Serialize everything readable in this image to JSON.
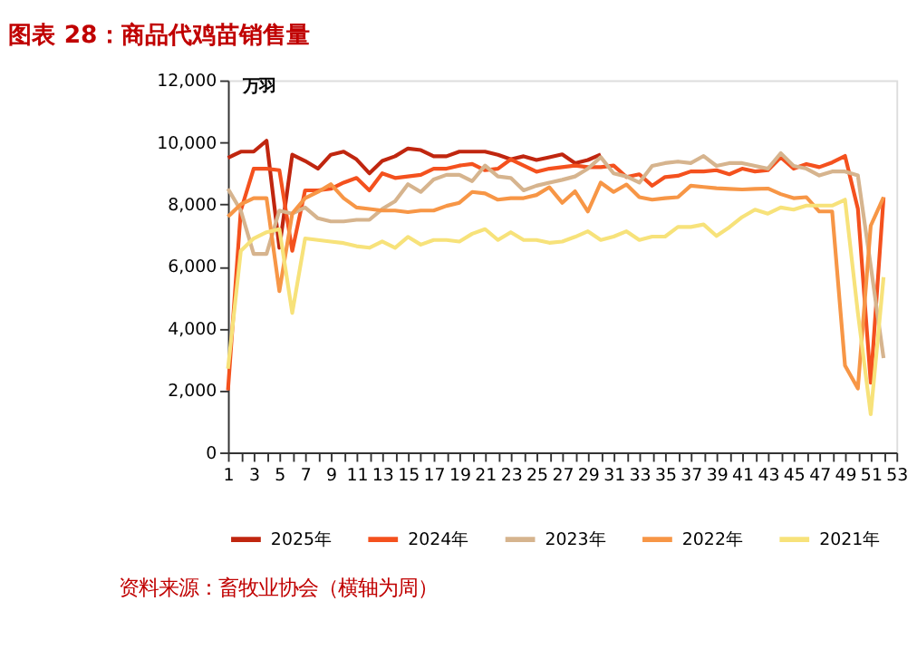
{
  "chart_data": {
    "type": "line",
    "title": "图表 28：商品代鸡苗销售量",
    "ylabel": "万羽",
    "x": [
      1,
      2,
      3,
      4,
      5,
      6,
      7,
      8,
      9,
      10,
      11,
      12,
      13,
      14,
      15,
      16,
      17,
      18,
      19,
      20,
      21,
      22,
      23,
      24,
      25,
      26,
      27,
      28,
      29,
      30,
      31,
      32,
      33,
      34,
      35,
      36,
      37,
      38,
      39,
      40,
      41,
      42,
      43,
      44,
      45,
      46,
      47,
      48,
      49,
      50,
      51,
      52
    ],
    "series": [
      {
        "name": "2025年",
        "color": "#c0260f",
        "values": [
          9500,
          9700,
          9700,
          10050,
          6600,
          9600,
          9400,
          9150,
          9600,
          9700,
          9450,
          9000,
          9400,
          9550,
          9800,
          9750,
          9550,
          9550,
          9700,
          9700,
          9700,
          9600,
          9450,
          9550,
          9430,
          9520,
          9610,
          9330,
          9430,
          9610,
          null,
          null,
          null,
          null,
          null,
          null,
          null,
          null,
          null,
          null,
          null,
          null,
          null,
          null,
          null,
          null,
          null,
          null,
          null,
          null,
          null,
          null
        ]
      },
      {
        "name": "2024年",
        "color": "#f4511e",
        "values": [
          2000,
          7800,
          9150,
          9150,
          9100,
          6500,
          8450,
          8450,
          8500,
          8700,
          8850,
          8450,
          9000,
          8850,
          8900,
          8950,
          9150,
          9150,
          9250,
          9300,
          9100,
          9150,
          9450,
          9250,
          9050,
          9150,
          9200,
          9250,
          9200,
          9200,
          9250,
          8880,
          8970,
          8600,
          8880,
          8920,
          9060,
          9060,
          9100,
          8970,
          9150,
          9060,
          9100,
          9520,
          9150,
          9300,
          9200,
          9350,
          9560,
          7860,
          2250,
          8230
        ]
      },
      {
        "name": "2023年",
        "color": "#d6b48e",
        "values": [
          8500,
          7800,
          6400,
          6400,
          7800,
          7700,
          7900,
          7550,
          7450,
          7450,
          7500,
          7500,
          7850,
          8100,
          8650,
          8400,
          8800,
          8950,
          8950,
          8750,
          9250,
          8900,
          8850,
          8450,
          8600,
          8700,
          8790,
          8900,
          9150,
          9520,
          9000,
          8900,
          8700,
          9240,
          9330,
          9380,
          9330,
          9560,
          9240,
          9330,
          9330,
          9240,
          9150,
          9650,
          9240,
          9150,
          8930,
          9060,
          9060,
          8930,
          6020,
          3040
        ]
      },
      {
        "name": "2022年",
        "color": "#f79646",
        "values": [
          7600,
          8000,
          8200,
          8200,
          5200,
          7700,
          8200,
          8400,
          8650,
          8200,
          7900,
          7850,
          7800,
          7800,
          7750,
          7800,
          7800,
          7950,
          8050,
          8400,
          8350,
          8150,
          8200,
          8200,
          8300,
          8550,
          8050,
          8420,
          7770,
          8700,
          8400,
          8640,
          8230,
          8150,
          8200,
          8230,
          8600,
          8560,
          8520,
          8500,
          8480,
          8500,
          8510,
          8330,
          8200,
          8230,
          7770,
          7770,
          2800,
          2060,
          7310,
          8230
        ]
      },
      {
        "name": "2021年",
        "color": "#f7e27a",
        "values": [
          2700,
          6500,
          6900,
          7100,
          7200,
          4500,
          6900,
          6850,
          6800,
          6750,
          6650,
          6600,
          6800,
          6600,
          6950,
          6700,
          6850,
          6850,
          6800,
          7050,
          7200,
          6850,
          7100,
          6850,
          6850,
          6760,
          6800,
          6950,
          7130,
          6850,
          6960,
          7130,
          6850,
          6960,
          6960,
          7270,
          7270,
          7350,
          6980,
          7260,
          7590,
          7830,
          7700,
          7900,
          7830,
          7960,
          7960,
          7960,
          8150,
          4500,
          1230,
          5650
        ]
      }
    ],
    "xlim": [
      1,
      53
    ],
    "xticks": [
      1,
      {
        "value": 2,
        "label": null
      },
      3,
      {
        "value": 4,
        "label": null
      },
      5,
      {
        "value": 6,
        "label": null
      },
      7,
      {
        "value": 8,
        "label": null
      },
      9,
      {
        "value": 10,
        "label": null
      },
      11,
      {
        "value": 12,
        "label": null
      },
      13,
      {
        "value": 14,
        "label": null
      },
      15,
      {
        "value": 16,
        "label": null
      },
      17,
      {
        "value": 18,
        "label": null
      },
      19,
      {
        "value": 20,
        "label": null
      },
      21,
      {
        "value": 22,
        "label": null
      },
      23,
      {
        "value": 24,
        "label": null
      },
      25,
      {
        "value": 26,
        "label": null
      },
      27,
      {
        "value": 28,
        "label": null
      },
      29,
      {
        "value": 30,
        "label": null
      },
      31,
      {
        "value": 32,
        "label": null
      },
      33,
      {
        "value": 34,
        "label": null
      },
      35,
      {
        "value": 36,
        "label": null
      },
      37,
      {
        "value": 38,
        "label": null
      },
      39,
      {
        "value": 40,
        "label": null
      },
      41,
      {
        "value": 42,
        "label": null
      },
      43,
      {
        "value": 44,
        "label": null
      },
      45,
      {
        "value": 46,
        "label": null
      },
      47,
      {
        "value": 48,
        "label": null
      },
      49,
      {
        "value": 50,
        "label": null
      },
      51,
      {
        "value": 52,
        "label": null
      },
      53
    ],
    "ylim": [
      0,
      12000
    ],
    "yticks": [
      0,
      {
        "value": 2000,
        "label": "2,000"
      },
      {
        "value": 4000,
        "label": "4,000"
      },
      {
        "value": 6000,
        "label": "6,000"
      },
      {
        "value": 8000,
        "label": "8,000"
      },
      {
        "value": 10000,
        "label": "10,000"
      },
      {
        "value": 12000,
        "label": "12,000"
      }
    ],
    "grid": false,
    "legend": "bottom",
    "marker": "none",
    "line_style": "solid",
    "annotations": [
      "资料来源：畜牧业协会（横轴为周）"
    ]
  }
}
